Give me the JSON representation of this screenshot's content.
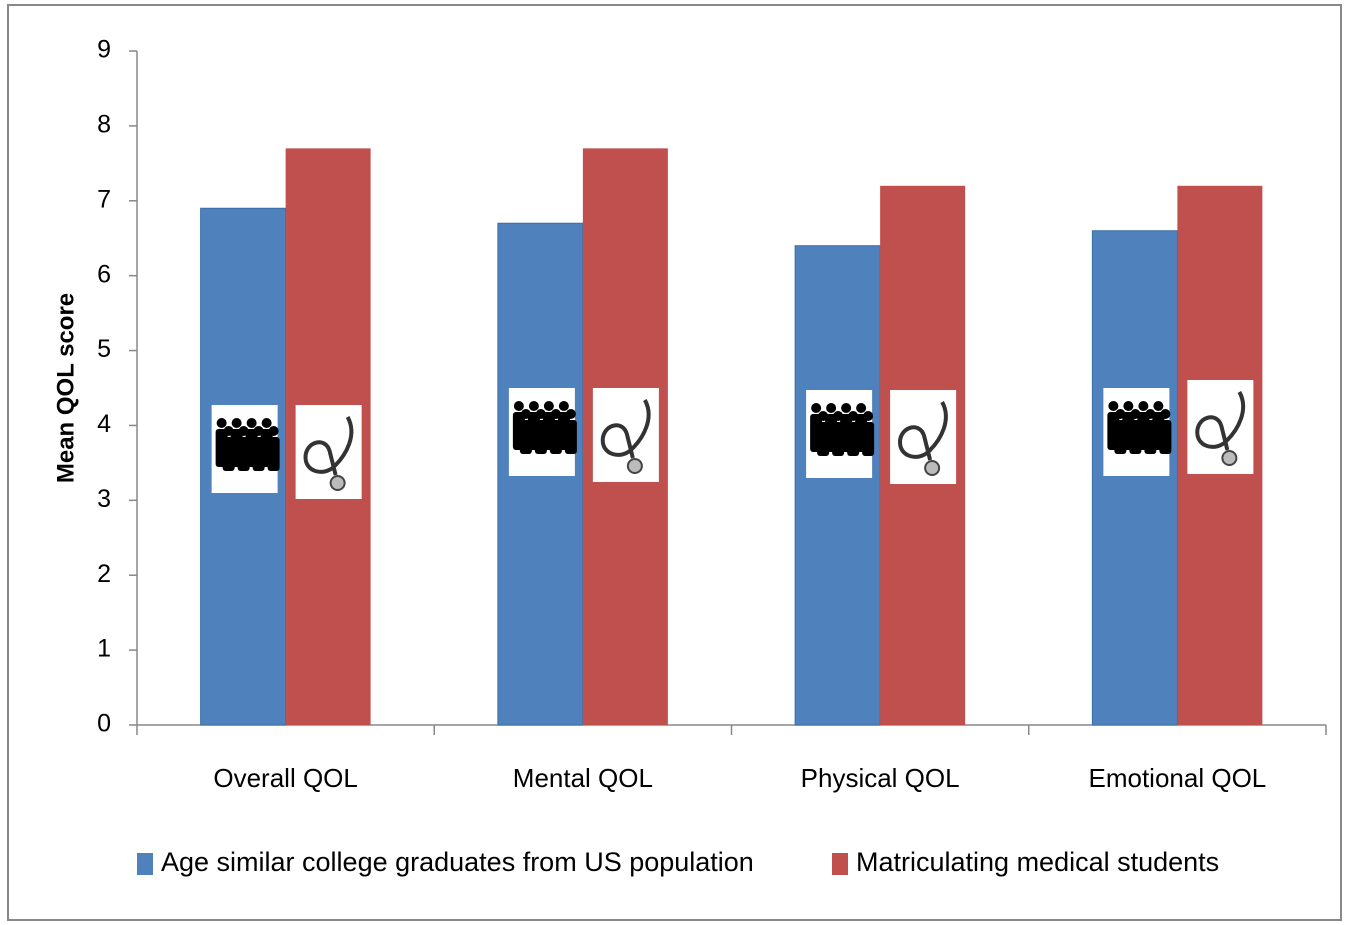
{
  "chart_data": {
    "type": "bar",
    "y_label": "Mean QOL score",
    "categories": [
      "Overall QOL",
      "Mental QOL",
      "Physical QOL",
      "Emotional QOL"
    ],
    "series": [
      {
        "name": "Age similar college graduates from US population",
        "color": "#4f81bd",
        "values": [
          6.9,
          6.7,
          6.4,
          6.6
        ]
      },
      {
        "name": "Matriculating medical students",
        "color": "#c0504d",
        "values": [
          7.7,
          7.7,
          7.2,
          7.2
        ]
      }
    ],
    "ylim": [
      0,
      9
    ],
    "yticks": [
      0,
      1,
      2,
      3,
      4,
      5,
      6,
      7,
      8,
      9
    ],
    "grid": false,
    "legend": "bottom"
  }
}
